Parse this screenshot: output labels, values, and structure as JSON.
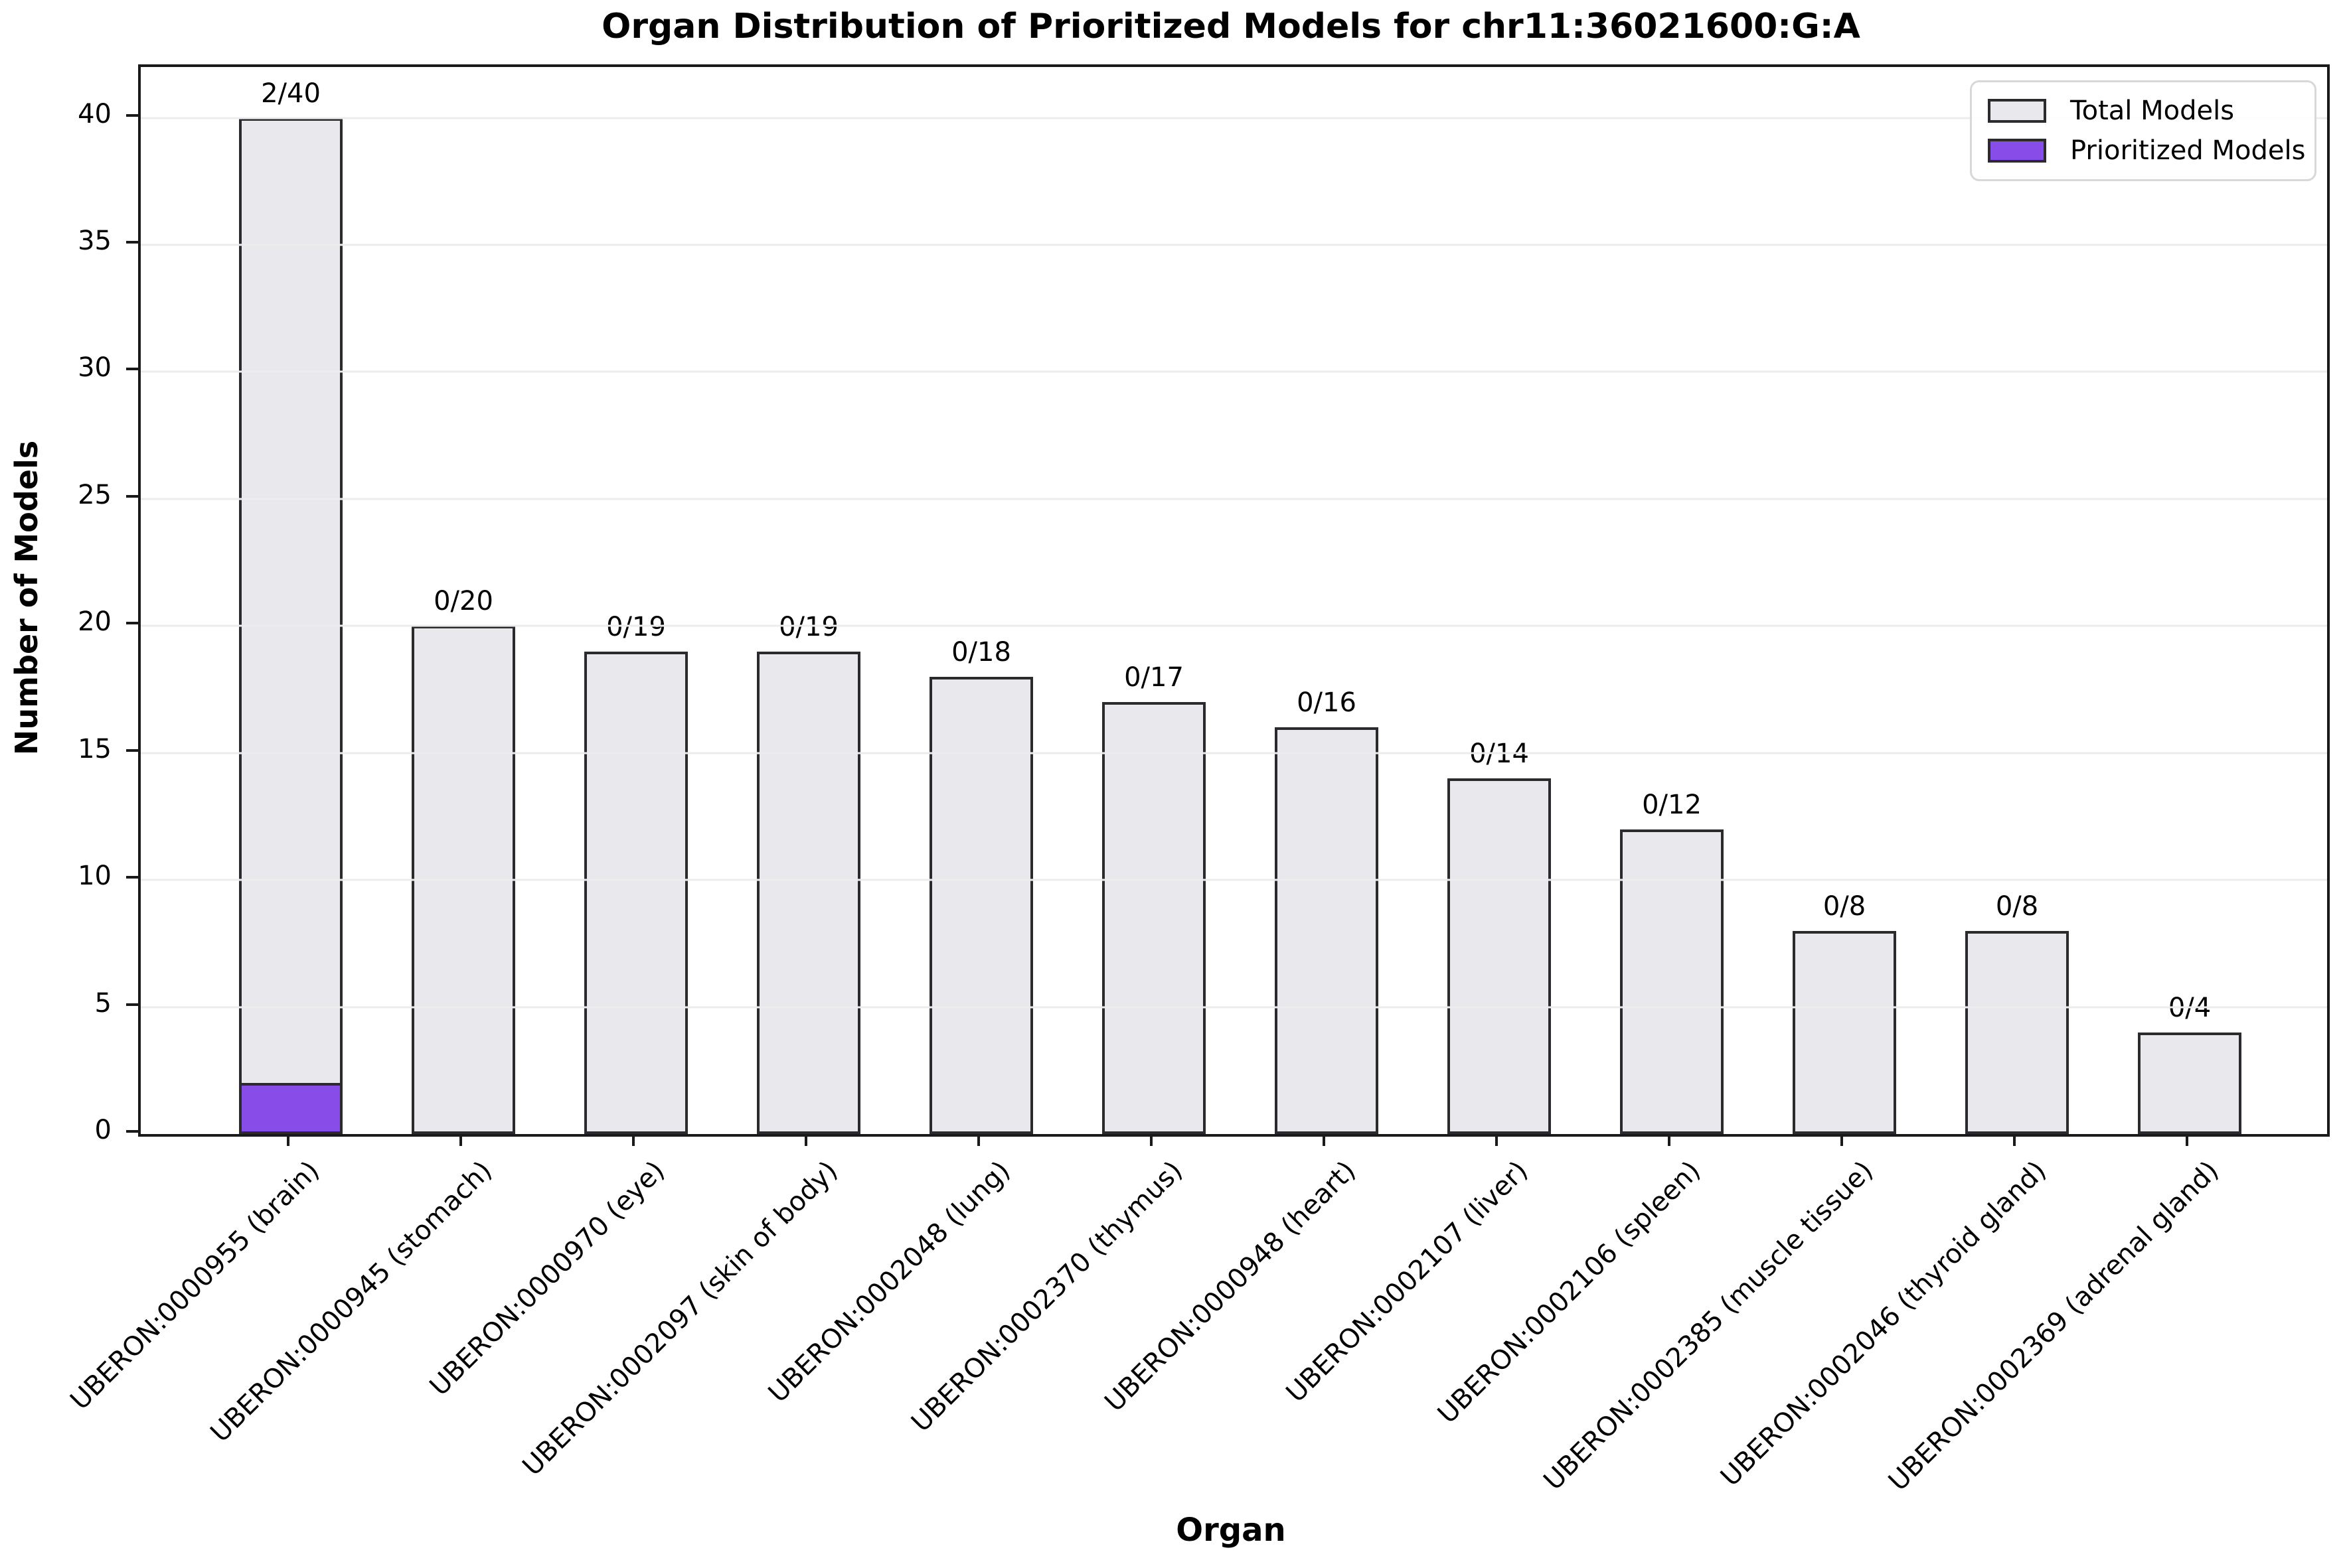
{
  "title": "Organ Distribution of Prioritized Models for chr11:36021600:G:A",
  "chart_data": {
    "type": "bar",
    "title": "Organ Distribution of Prioritized Models for chr11:36021600:G:A",
    "xlabel": "Organ",
    "ylabel": "Number of Models",
    "ylim": [
      0,
      42
    ],
    "yticks": [
      0,
      5,
      10,
      15,
      20,
      25,
      30,
      35,
      40
    ],
    "grid": "horizontal",
    "categories": [
      "UBERON:0000955 (brain)",
      "UBERON:0000945 (stomach)",
      "UBERON:0000970 (eye)",
      "UBERON:0002097 (skin of body)",
      "UBERON:0002048 (lung)",
      "UBERON:0002370 (thymus)",
      "UBERON:0000948 (heart)",
      "UBERON:0002107 (liver)",
      "UBERON:0002106 (spleen)",
      "UBERON:0002385 (muscle tissue)",
      "UBERON:0002046 (thyroid gland)",
      "UBERON:0002369 (adrenal gland)"
    ],
    "series": [
      {
        "name": "Total Models",
        "color": "#e9e9ed",
        "values": [
          40,
          20,
          19,
          19,
          18,
          17,
          16,
          14,
          12,
          8,
          8,
          4
        ]
      },
      {
        "name": "Prioritized Models",
        "color": "#884de9",
        "values": [
          2,
          0,
          0,
          0,
          0,
          0,
          0,
          0,
          0,
          0,
          0,
          0
        ]
      }
    ],
    "bar_labels": [
      "2/40",
      "0/20",
      "0/19",
      "0/19",
      "0/18",
      "0/17",
      "0/16",
      "0/14",
      "0/12",
      "0/8",
      "0/8",
      "0/4"
    ],
    "legend": {
      "position": "upper right",
      "entries": [
        {
          "label": "Total Models",
          "color": "#e9e9ed"
        },
        {
          "label": "Prioritized Models",
          "color": "#884de9"
        }
      ]
    },
    "colors": {
      "bar_fill": "#e9e9ed",
      "bar_edge": "#2b2b2e",
      "prioritized_fill": "#884de9",
      "grid": "#ececec",
      "axis": "#1a1a1a"
    }
  }
}
